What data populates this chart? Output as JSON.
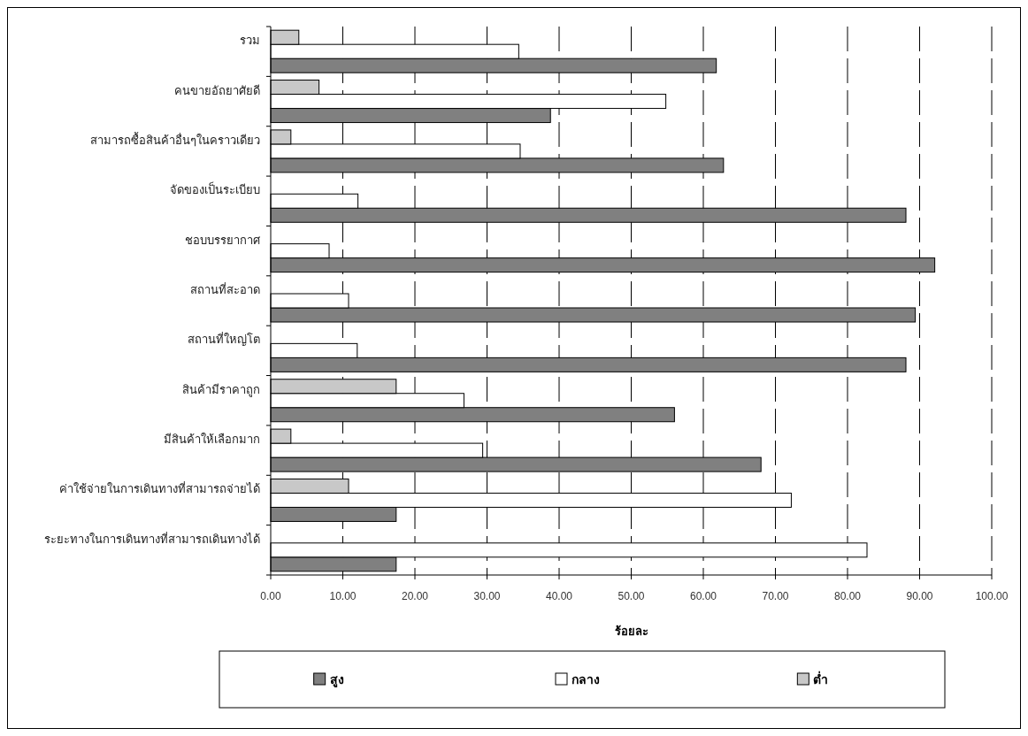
{
  "chart_data": {
    "type": "bar",
    "orientation": "horizontal",
    "xlabel": "ร้อยละ",
    "categories": [
      "รวม",
      "คนขายอัถยาศัยดี",
      "สามารถซื้อสินค้าอื่นๆในคราวเดียว",
      "จัดของเป็นระเบียบ",
      "ชอบบรรยากาศ",
      "สถานที่สะอาด",
      "สถานที่ใหญ่โต",
      "สินค้ามีราคาถูก",
      "มีสินค้าให้เลือกมาก",
      "ค่าใช้จ่ายในการเดินทางที่สามารถจ่ายได้",
      "ระยะทางในการเดินทางที่สามารถเดินทางได้"
    ],
    "series": [
      {
        "name": "สูง",
        "color": "#808080",
        "values": [
          61.8,
          38.8,
          62.8,
          88.1,
          92.1,
          89.4,
          88.1,
          56.0,
          68.0,
          17.4,
          17.4
        ]
      },
      {
        "name": "กลาง",
        "color": "#ffffff",
        "values": [
          34.4,
          54.8,
          34.6,
          12.1,
          8.1,
          10.8,
          12.0,
          26.8,
          29.4,
          72.2,
          82.7
        ]
      },
      {
        "name": "ต่ำ",
        "color": "#c8c8c8",
        "values": [
          3.9,
          6.7,
          2.8,
          null,
          null,
          null,
          null,
          17.4,
          2.8,
          10.8,
          null
        ]
      }
    ],
    "xlim": [
      0,
      100
    ],
    "xticks": [
      {
        "value": 0,
        "label": "0.00"
      },
      {
        "value": 10,
        "label": "10.00"
      },
      {
        "value": 20,
        "label": "20.00"
      },
      {
        "value": 30,
        "label": "30.00"
      },
      {
        "value": 40,
        "label": "40.00"
      },
      {
        "value": 50,
        "label": "50.00"
      },
      {
        "value": 60,
        "label": "60.00"
      },
      {
        "value": 70,
        "label": "70.00"
      },
      {
        "value": 80,
        "label": "80.00"
      },
      {
        "value": 90,
        "label": "90.00"
      },
      {
        "value": 100,
        "label": "100.00"
      }
    ],
    "grid": "x",
    "legend": "bottom"
  }
}
